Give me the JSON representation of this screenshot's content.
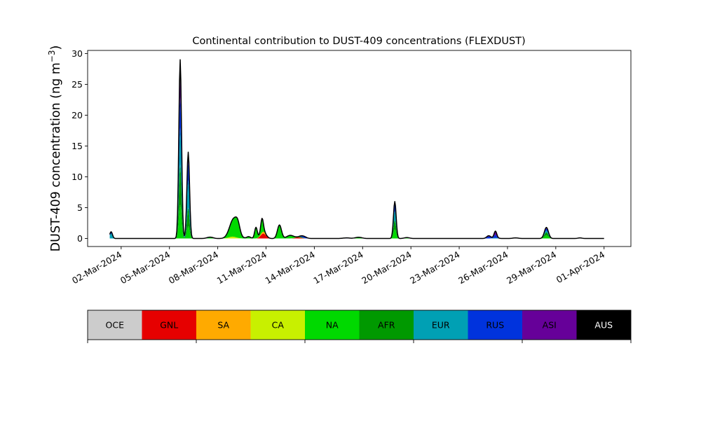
{
  "chart_data": {
    "type": "area",
    "title": "Continental contribution to DUST-409 concentrations (FLEXDUST)",
    "ylabel_main": "DUST-409 concentration (ng m",
    "ylabel_sup": "−3",
    "ylabel_close": ")",
    "xlabel": "",
    "ylim": [
      -1.3,
      30.5
    ],
    "xlim": [
      "2024-02-28T22:00",
      "2024-04-02T16:00"
    ],
    "yticks": [
      0,
      5,
      10,
      15,
      20,
      25,
      30
    ],
    "xticks": [
      {
        "date": "2024-03-02",
        "label": "02-Mar-2024"
      },
      {
        "date": "2024-03-05",
        "label": "05-Mar-2024"
      },
      {
        "date": "2024-03-08",
        "label": "08-Mar-2024"
      },
      {
        "date": "2024-03-11",
        "label": "11-Mar-2024"
      },
      {
        "date": "2024-03-14",
        "label": "14-Mar-2024"
      },
      {
        "date": "2024-03-17",
        "label": "17-Mar-2024"
      },
      {
        "date": "2024-03-20",
        "label": "20-Mar-2024"
      },
      {
        "date": "2024-03-23",
        "label": "23-Mar-2024"
      },
      {
        "date": "2024-03-26",
        "label": "26-Mar-2024"
      },
      {
        "date": "2024-03-29",
        "label": "29-Mar-2024"
      },
      {
        "date": "2024-04-01",
        "label": "01-Apr-2024"
      }
    ],
    "grid": false,
    "stacked": true,
    "total_line_color": "#000000",
    "series": [
      {
        "name": "OCE",
        "color": "#cccccc",
        "peaks": []
      },
      {
        "name": "GNL",
        "color": "#e60000",
        "peaks": [
          {
            "t": "2024-03-10T20:00",
            "h": 0.8,
            "w": 4
          },
          {
            "t": "2024-03-13T00:00",
            "h": 0.2,
            "w": 5
          }
        ]
      },
      {
        "name": "SA",
        "color": "#ffaa00",
        "peaks": [
          {
            "t": "2024-03-10T20:00",
            "h": 0.3,
            "w": 4
          }
        ]
      },
      {
        "name": "CA",
        "color": "#c8f000",
        "peaks": [
          {
            "t": "2024-03-08T22:00",
            "h": 0.3,
            "w": 6
          }
        ]
      },
      {
        "name": "NA",
        "color": "#00d900",
        "peaks": [
          {
            "t": "2024-03-05T16:00",
            "h": 5.5,
            "w": 2
          },
          {
            "t": "2024-03-06T04:00",
            "h": 2.0,
            "w": 2
          },
          {
            "t": "2024-03-07T14:00",
            "h": 0.15,
            "w": 4
          },
          {
            "t": "2024-03-09T00:00",
            "h": 2.9,
            "w": 6
          },
          {
            "t": "2024-03-09T06:00",
            "h": 1.2,
            "w": 3
          },
          {
            "t": "2024-03-09T22:00",
            "h": 0.3,
            "w": 3
          },
          {
            "t": "2024-03-10T09:00",
            "h": 1.8,
            "w": 2
          },
          {
            "t": "2024-03-10T18:00",
            "h": 2.3,
            "w": 2
          },
          {
            "t": "2024-03-11T20:00",
            "h": 2.2,
            "w": 3
          },
          {
            "t": "2024-03-12T12:00",
            "h": 0.5,
            "w": 5
          },
          {
            "t": "2024-03-13T04:00",
            "h": 0.1,
            "w": 3
          },
          {
            "t": "2024-03-16T18:00",
            "h": 0.2,
            "w": 5
          },
          {
            "t": "2024-03-19T00:00",
            "h": 1.5,
            "w": 2
          },
          {
            "t": "2024-03-19T18:00",
            "h": 0.15,
            "w": 4
          },
          {
            "t": "2024-03-28T10:00",
            "h": 0.5,
            "w": 3
          }
        ]
      },
      {
        "name": "AFR",
        "color": "#009900",
        "peaks": [
          {
            "t": "2024-03-05T16:00",
            "h": 6.5,
            "w": 2
          },
          {
            "t": "2024-03-06T04:00",
            "h": 3.0,
            "w": 2
          },
          {
            "t": "2024-03-19T00:00",
            "h": 1.5,
            "w": 2
          },
          {
            "t": "2024-03-28T10:00",
            "h": 0.5,
            "w": 3
          }
        ]
      },
      {
        "name": "EUR",
        "color": "#00a0b4",
        "peaks": [
          {
            "t": "2024-03-01T09:00",
            "h": 0.8,
            "w": 2
          },
          {
            "t": "2024-03-05T16:00",
            "h": 6.0,
            "w": 2
          },
          {
            "t": "2024-03-06T04:00",
            "h": 4.5,
            "w": 2
          },
          {
            "t": "2024-03-07T10:00",
            "h": 0.1,
            "w": 4
          },
          {
            "t": "2024-03-19T00:00",
            "h": 1.5,
            "w": 2
          },
          {
            "t": "2024-03-25T06:00",
            "h": 0.1,
            "w": 4
          },
          {
            "t": "2024-03-28T10:00",
            "h": 0.3,
            "w": 3
          }
        ]
      },
      {
        "name": "RUS",
        "color": "#0033dd",
        "peaks": [
          {
            "t": "2024-03-01T09:00",
            "h": 0.3,
            "w": 2
          },
          {
            "t": "2024-03-05T16:00",
            "h": 5.0,
            "w": 2
          },
          {
            "t": "2024-03-06T04:00",
            "h": 3.0,
            "w": 2
          },
          {
            "t": "2024-03-13T08:00",
            "h": 0.2,
            "w": 4
          },
          {
            "t": "2024-03-16T00:00",
            "h": 0.1,
            "w": 5
          },
          {
            "t": "2024-03-19T00:00",
            "h": 1.0,
            "w": 2
          },
          {
            "t": "2024-03-24T20:00",
            "h": 0.3,
            "w": 3
          },
          {
            "t": "2024-03-25T06:00",
            "h": 0.5,
            "w": 2
          },
          {
            "t": "2024-03-26T12:00",
            "h": 0.1,
            "w": 4
          },
          {
            "t": "2024-03-28T10:00",
            "h": 0.3,
            "w": 3
          },
          {
            "t": "2024-03-30T12:00",
            "h": 0.1,
            "w": 3
          }
        ]
      },
      {
        "name": "ASI",
        "color": "#660099",
        "peaks": [
          {
            "t": "2024-03-05T16:00",
            "h": 3.0,
            "w": 2
          },
          {
            "t": "2024-03-06T04:00",
            "h": 1.5,
            "w": 2
          },
          {
            "t": "2024-03-13T08:00",
            "h": 0.1,
            "w": 4
          },
          {
            "t": "2024-03-19T00:00",
            "h": 0.5,
            "w": 2
          },
          {
            "t": "2024-03-24T20:00",
            "h": 0.15,
            "w": 3
          },
          {
            "t": "2024-03-25T06:00",
            "h": 0.6,
            "w": 2
          },
          {
            "t": "2024-03-28T10:00",
            "h": 0.2,
            "w": 3
          }
        ]
      },
      {
        "name": "AUS",
        "color": "#000000",
        "peaks": [
          {
            "t": "2024-03-05T16:00",
            "h": 3.0,
            "w": 2
          }
        ]
      }
    ]
  }
}
